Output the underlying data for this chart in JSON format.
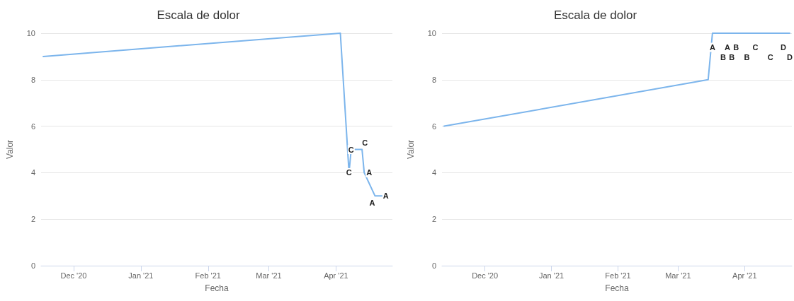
{
  "chart_data": [
    {
      "type": "line",
      "title": "Escala de dolor",
      "xlabel": "Fecha",
      "ylabel": "Valor",
      "x": [
        "2020-11-17",
        "2021-04-03",
        "2021-04-07",
        "2021-04-08",
        "2021-04-13",
        "2021-04-14",
        "2021-04-19",
        "2021-04-24"
      ],
      "series": [
        {
          "color": "#7cb5ec",
          "values": [
            9,
            10,
            4,
            5,
            5,
            4,
            3,
            3
          ]
        }
      ],
      "annotations": [
        {
          "text": "C",
          "x": "2021-04-07",
          "y": 4
        },
        {
          "text": "C",
          "x": "2021-04-08",
          "y": 5
        },
        {
          "text": "C",
          "x": "2021-04-13",
          "y": 5
        },
        {
          "text": "A",
          "x": "2021-04-14",
          "y": 4
        },
        {
          "text": "A",
          "x": "2021-04-19",
          "y": 3
        },
        {
          "text": "A",
          "x": "2021-04-24",
          "y": 3
        }
      ],
      "xlim": [
        "2020-11-16",
        "2021-04-27"
      ],
      "xticks": [
        {
          "value": "2020-12-01",
          "label": "Dec '20"
        },
        {
          "value": "2021-01-01",
          "label": "Jan '21"
        },
        {
          "value": "2021-02-01",
          "label": "Feb '21"
        },
        {
          "value": "2021-03-01",
          "label": "Mar '21"
        },
        {
          "value": "2021-04-01",
          "label": "Apr '21"
        }
      ],
      "ylim": [
        0,
        10
      ],
      "yticks": [
        0,
        2,
        4,
        6,
        8,
        10
      ],
      "grid": "y",
      "marker": "none",
      "line_style": "solid"
    },
    {
      "type": "line",
      "title": "Escala de dolor",
      "xlabel": "Fecha",
      "ylabel": "Valor",
      "x": [
        "2020-11-12",
        "2021-03-15",
        "2021-03-17",
        "2021-03-22",
        "2021-03-24",
        "2021-03-26",
        "2021-03-28",
        "2021-04-02",
        "2021-04-06",
        "2021-04-13",
        "2021-04-19",
        "2021-04-22"
      ],
      "series": [
        {
          "color": "#7cb5ec",
          "values": [
            6,
            8,
            10,
            10,
            10,
            10,
            10,
            10,
            10,
            10,
            10,
            10
          ]
        }
      ],
      "annotations": [
        {
          "text": "A",
          "x": "2021-03-17",
          "y": 10
        },
        {
          "text": "B",
          "x": "2021-03-22",
          "y": 10
        },
        {
          "text": "A",
          "x": "2021-03-24",
          "y": 10
        },
        {
          "text": "B",
          "x": "2021-03-26",
          "y": 10
        },
        {
          "text": "B",
          "x": "2021-03-28",
          "y": 10
        },
        {
          "text": "B",
          "x": "2021-04-02",
          "y": 10
        },
        {
          "text": "C",
          "x": "2021-04-06",
          "y": 10
        },
        {
          "text": "C",
          "x": "2021-04-13",
          "y": 10
        },
        {
          "text": "D",
          "x": "2021-04-19",
          "y": 10
        },
        {
          "text": "D",
          "x": "2021-04-22",
          "y": 10
        }
      ],
      "xlim": [
        "2020-11-11",
        "2021-04-23"
      ],
      "xticks": [
        {
          "value": "2020-12-01",
          "label": "Dec '20"
        },
        {
          "value": "2021-01-01",
          "label": "Jan '21"
        },
        {
          "value": "2021-02-01",
          "label": "Feb '21"
        },
        {
          "value": "2021-03-01",
          "label": "Mar '21"
        },
        {
          "value": "2021-04-01",
          "label": "Apr '21"
        }
      ],
      "ylim": [
        0,
        10
      ],
      "yticks": [
        0,
        2,
        4,
        6,
        8,
        10
      ],
      "grid": "y",
      "marker": "none",
      "line_style": "solid"
    }
  ]
}
